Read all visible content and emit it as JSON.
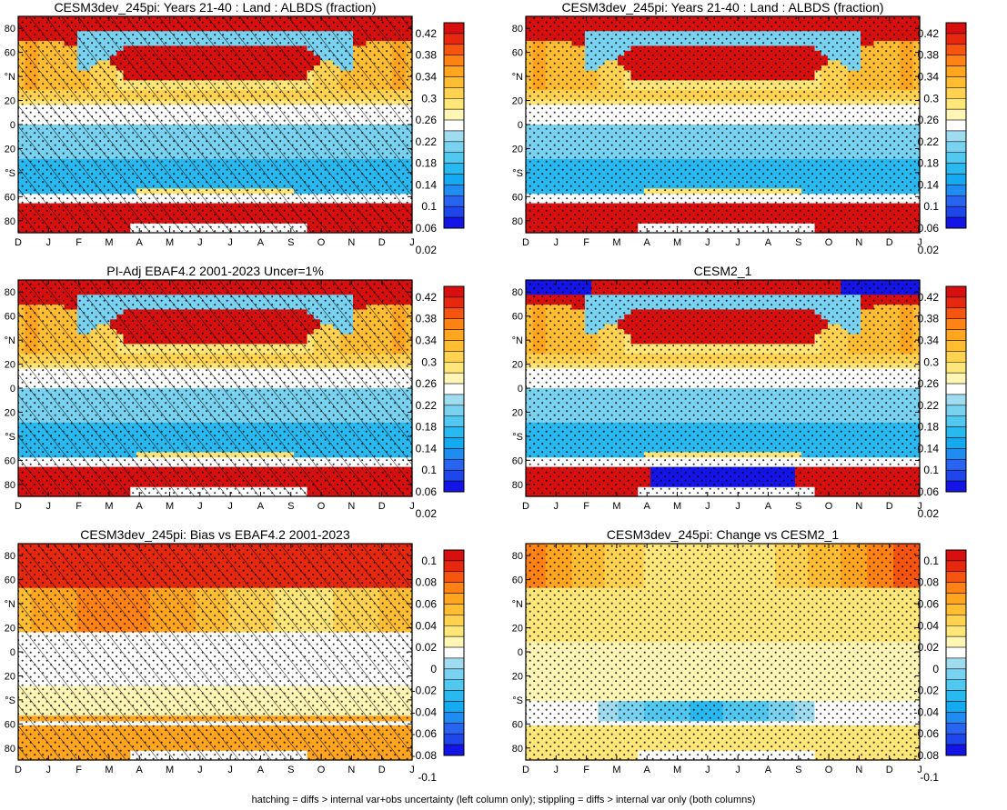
{
  "footnote": "hatching = diffs > internal var+obs uncertainty (left column only); stippling = diffs > internal var only (both columns)",
  "colors": {
    "scale": [
      "#1414e6",
      "#1e46eb",
      "#2864f0",
      "#1e8cf0",
      "#14aaf0",
      "#28b9f0",
      "#50c8f0",
      "#78d2f0",
      "#a0dcf0",
      "#ffffff",
      "#fff5b4",
      "#ffe678",
      "#ffd250",
      "#ffbe32",
      "#ffa51e",
      "#ff8214",
      "#f5550f",
      "#e6280f",
      "#d7100f"
    ]
  },
  "chart_data": [
    {
      "type": "heatmap",
      "title": "CESM3dev_245pi: Years 21-40 : Land : ALBDS (fraction)",
      "field": "abs",
      "variant": "model",
      "hatch": true,
      "x_ticks": [
        "D",
        "J",
        "F",
        "M",
        "A",
        "M",
        "J",
        "J",
        "A",
        "S",
        "O",
        "N",
        "D",
        "J"
      ],
      "y_ticks": [
        "80",
        "60",
        "°N",
        "20",
        "0",
        "20",
        "°S",
        "60",
        "80"
      ],
      "colorbar": [
        "0.42",
        "0.38",
        "0.34",
        "0.3",
        "0.26",
        "0.22",
        "0.18",
        "0.14",
        "0.1",
        "0.06",
        "0.02"
      ]
    },
    {
      "type": "heatmap",
      "title": "CESM3dev_245pi: Years 21-40 : Land : ALBDS (fraction)",
      "field": "abs",
      "variant": "model",
      "hatch": false,
      "x_ticks": [
        "D",
        "J",
        "F",
        "M",
        "A",
        "M",
        "J",
        "J",
        "A",
        "S",
        "O",
        "N",
        "D",
        "J"
      ],
      "y_ticks": [
        "80",
        "60",
        "°N",
        "20",
        "0",
        "20",
        "°S",
        "60",
        "80"
      ],
      "colorbar": [
        "0.42",
        "0.38",
        "0.34",
        "0.3",
        "0.26",
        "0.22",
        "0.18",
        "0.14",
        "0.1",
        "0.06",
        "0.02"
      ]
    },
    {
      "type": "heatmap",
      "title": "PI-Adj EBAF4.2 2001-2023 Uncer=1%",
      "field": "abs",
      "variant": "obs",
      "hatch": true,
      "x_ticks": [
        "D",
        "J",
        "F",
        "M",
        "A",
        "M",
        "J",
        "J",
        "A",
        "S",
        "O",
        "N",
        "D",
        "J"
      ],
      "y_ticks": [
        "80",
        "60",
        "°N",
        "20",
        "0",
        "20",
        "°S",
        "60",
        "80"
      ],
      "colorbar": [
        "0.42",
        "0.38",
        "0.34",
        "0.3",
        "0.26",
        "0.22",
        "0.18",
        "0.14",
        "0.1",
        "0.06",
        "0.02"
      ]
    },
    {
      "type": "heatmap",
      "title": "CESM2_1",
      "field": "abs",
      "variant": "cesm2",
      "hatch": false,
      "x_ticks": [
        "D",
        "J",
        "F",
        "M",
        "A",
        "M",
        "J",
        "J",
        "A",
        "S",
        "O",
        "N",
        "D",
        "J"
      ],
      "y_ticks": [
        "80",
        "60",
        "°N",
        "20",
        "0",
        "20",
        "°S",
        "60",
        "80"
      ],
      "colorbar": [
        "0.42",
        "0.38",
        "0.34",
        "0.3",
        "0.26",
        "0.22",
        "0.18",
        "0.14",
        "0.1",
        "0.06",
        "0.02"
      ]
    },
    {
      "type": "heatmap",
      "title": "CESM3dev_245pi: Bias vs EBAF4.2 2001-2023",
      "field": "diff",
      "variant": "bias",
      "hatch": true,
      "x_ticks": [
        "D",
        "J",
        "F",
        "M",
        "A",
        "M",
        "J",
        "J",
        "A",
        "S",
        "O",
        "N",
        "D",
        "J"
      ],
      "y_ticks": [
        "80",
        "60",
        "°N",
        "20",
        "0",
        "20",
        "°S",
        "60",
        "80"
      ],
      "colorbar": [
        "0.1",
        "0.08",
        "0.06",
        "0.04",
        "0.02",
        "0",
        "-0.02",
        "-0.04",
        "-0.06",
        "-0.08",
        "-0.1"
      ]
    },
    {
      "type": "heatmap",
      "title": "CESM3dev_245pi: Change vs CESM2_1",
      "field": "diff",
      "variant": "change",
      "hatch": false,
      "x_ticks": [
        "D",
        "J",
        "F",
        "M",
        "A",
        "M",
        "J",
        "J",
        "A",
        "S",
        "O",
        "N",
        "D",
        "J"
      ],
      "y_ticks": [
        "80",
        "60",
        "°N",
        "20",
        "0",
        "20",
        "°S",
        "60",
        "80"
      ],
      "colorbar": [
        "0.1",
        "0.08",
        "0.06",
        "0.04",
        "0.02",
        "0",
        "-0.02",
        "-0.04",
        "-0.06",
        "-0.08",
        "-0.1"
      ]
    }
  ]
}
